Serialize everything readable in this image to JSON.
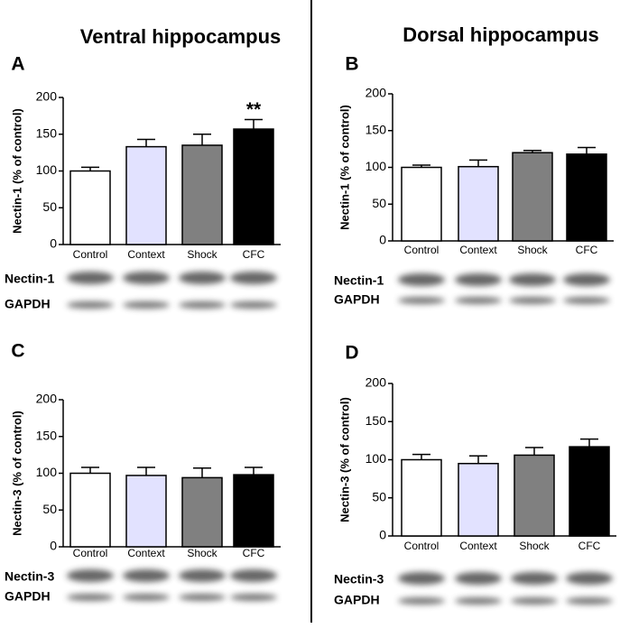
{
  "columns": [
    "Ventral hippocampus",
    "Dorsal hippocampus"
  ],
  "chart_data": [
    {
      "type": "bar",
      "panel": "A",
      "ylabel": "Nectin-1 (% of control)",
      "categories": [
        "Control",
        "Context",
        "Shock",
        "CFC"
      ],
      "values": [
        100,
        133,
        135,
        157
      ],
      "errors": [
        5,
        10,
        15,
        13
      ],
      "value_annotations": [
        null,
        null,
        null,
        "**"
      ],
      "colors": [
        "#ffffff",
        "#e2e2ff",
        "#808080",
        "#000000"
      ],
      "ylim": [
        0,
        200
      ],
      "yticks": [
        0,
        50,
        100,
        150,
        200
      ],
      "blot_labels": [
        "Nectin-1",
        "GAPDH"
      ]
    },
    {
      "type": "bar",
      "panel": "B",
      "ylabel": "Nectin-1 (% of control)",
      "categories": [
        "Control",
        "Context",
        "Shock",
        "CFC"
      ],
      "values": [
        100,
        101,
        120,
        118
      ],
      "errors": [
        3,
        9,
        3,
        9
      ],
      "colors": [
        "#ffffff",
        "#e2e2ff",
        "#808080",
        "#000000"
      ],
      "ylim": [
        0,
        200
      ],
      "yticks": [
        0,
        50,
        100,
        150,
        200
      ],
      "blot_labels": [
        "Nectin-1",
        "GAPDH"
      ]
    },
    {
      "type": "bar",
      "panel": "C",
      "ylabel": "Nectin-3 (% of control)",
      "categories": [
        "Control",
        "Context",
        "Shock",
        "CFC"
      ],
      "values": [
        100,
        97,
        94,
        98
      ],
      "errors": [
        8,
        11,
        13,
        10
      ],
      "colors": [
        "#ffffff",
        "#e2e2ff",
        "#808080",
        "#000000"
      ],
      "ylim": [
        0,
        200
      ],
      "yticks": [
        0,
        50,
        100,
        150,
        200
      ],
      "blot_labels": [
        "Nectin-3",
        "GAPDH"
      ]
    },
    {
      "type": "bar",
      "panel": "D",
      "ylabel": "Nectin-3 (% of control)",
      "categories": [
        "Control",
        "Context",
        "Shock",
        "CFC"
      ],
      "values": [
        100,
        95,
        106,
        117
      ],
      "errors": [
        7,
        10,
        10,
        10
      ],
      "colors": [
        "#ffffff",
        "#e2e2ff",
        "#808080",
        "#000000"
      ],
      "ylim": [
        0,
        200
      ],
      "yticks": [
        0,
        50,
        100,
        150,
        200
      ],
      "blot_labels": [
        "Nectin-3",
        "GAPDH"
      ]
    }
  ]
}
